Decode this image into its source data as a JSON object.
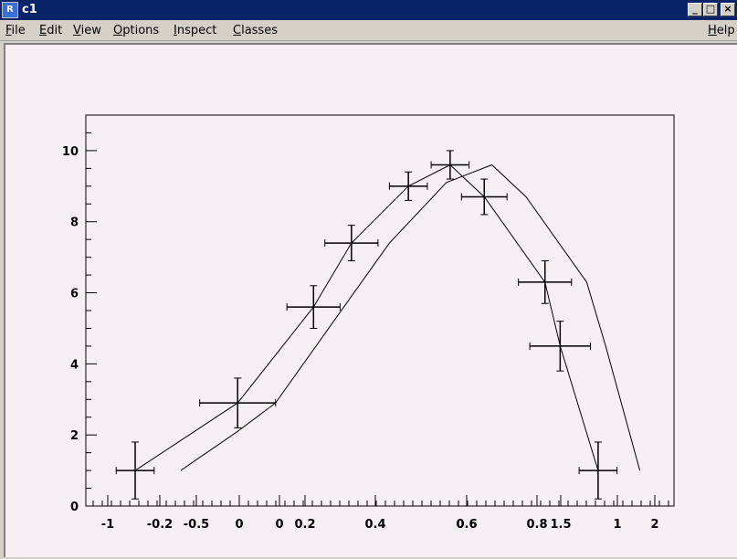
{
  "window": {
    "title": "c1",
    "icon": "root-app-icon"
  },
  "window_controls": {
    "minimize": "_",
    "maximize": "□",
    "close": "×"
  },
  "menu": {
    "items": [
      {
        "label": "File",
        "u": "F",
        "rest": "ile"
      },
      {
        "label": "Edit",
        "u": "E",
        "rest": "dit"
      },
      {
        "label": "View",
        "u": "V",
        "rest": "iew"
      },
      {
        "label": "Options",
        "u": "O",
        "rest": "ptions"
      },
      {
        "label": "Inspect",
        "u": "I",
        "rest": "nspect"
      },
      {
        "label": "Classes",
        "u": "C",
        "rest": "lasses"
      }
    ],
    "help": {
      "label": "Help",
      "u": "H",
      "rest": "elp"
    }
  },
  "chart_data": {
    "type": "scatter",
    "title": "",
    "xlabel": "",
    "ylabel": "",
    "ylim": [
      0,
      11
    ],
    "y_ticks": [
      "0",
      "2",
      "4",
      "6",
      "8",
      "10"
    ],
    "x_tick_labels": [
      "-1",
      "-0.2",
      "-0.5",
      "0",
      "0",
      "0.2",
      "0.4",
      "0.6",
      "0.6",
      "0.8",
      "1.5",
      "1",
      "2"
    ],
    "series": [
      {
        "points": [
          {
            "x": -0.22,
            "y": 1.0,
            "ex": 0.05,
            "ey": 0.8
          },
          {
            "x": 0.05,
            "y": 2.9,
            "ex": 0.1,
            "ey": 0.7
          },
          {
            "x": 0.25,
            "y": 5.6,
            "ex": 0.07,
            "ey": 0.6
          },
          {
            "x": 0.35,
            "y": 7.4,
            "ex": 0.07,
            "ey": 0.5
          },
          {
            "x": 0.5,
            "y": 9.0,
            "ex": 0.05,
            "ey": 0.4
          },
          {
            "x": 0.61,
            "y": 9.6,
            "ex": 0.05,
            "ey": 0.4
          },
          {
            "x": 0.7,
            "y": 8.7,
            "ex": 0.06,
            "ey": 0.5
          },
          {
            "x": 0.86,
            "y": 6.3,
            "ex": 0.07,
            "ey": 0.6
          },
          {
            "x": 0.9,
            "y": 4.5,
            "ex": 0.08,
            "ey": 0.7
          },
          {
            "x": 1.0,
            "y": 1.0,
            "ex": 0.05,
            "ey": 0.8
          }
        ]
      },
      {
        "points": [
          {
            "x": -0.1,
            "y": 1.0
          },
          {
            "x": 0.05,
            "y": 2.1
          },
          {
            "x": 0.15,
            "y": 2.9
          },
          {
            "x": 0.33,
            "y": 5.6
          },
          {
            "x": 0.45,
            "y": 7.4
          },
          {
            "x": 0.6,
            "y": 9.1
          },
          {
            "x": 0.72,
            "y": 9.6
          },
          {
            "x": 0.81,
            "y": 8.7
          },
          {
            "x": 0.97,
            "y": 6.3
          },
          {
            "x": 1.02,
            "y": 4.5
          },
          {
            "x": 1.11,
            "y": 1.0
          }
        ]
      }
    ]
  }
}
